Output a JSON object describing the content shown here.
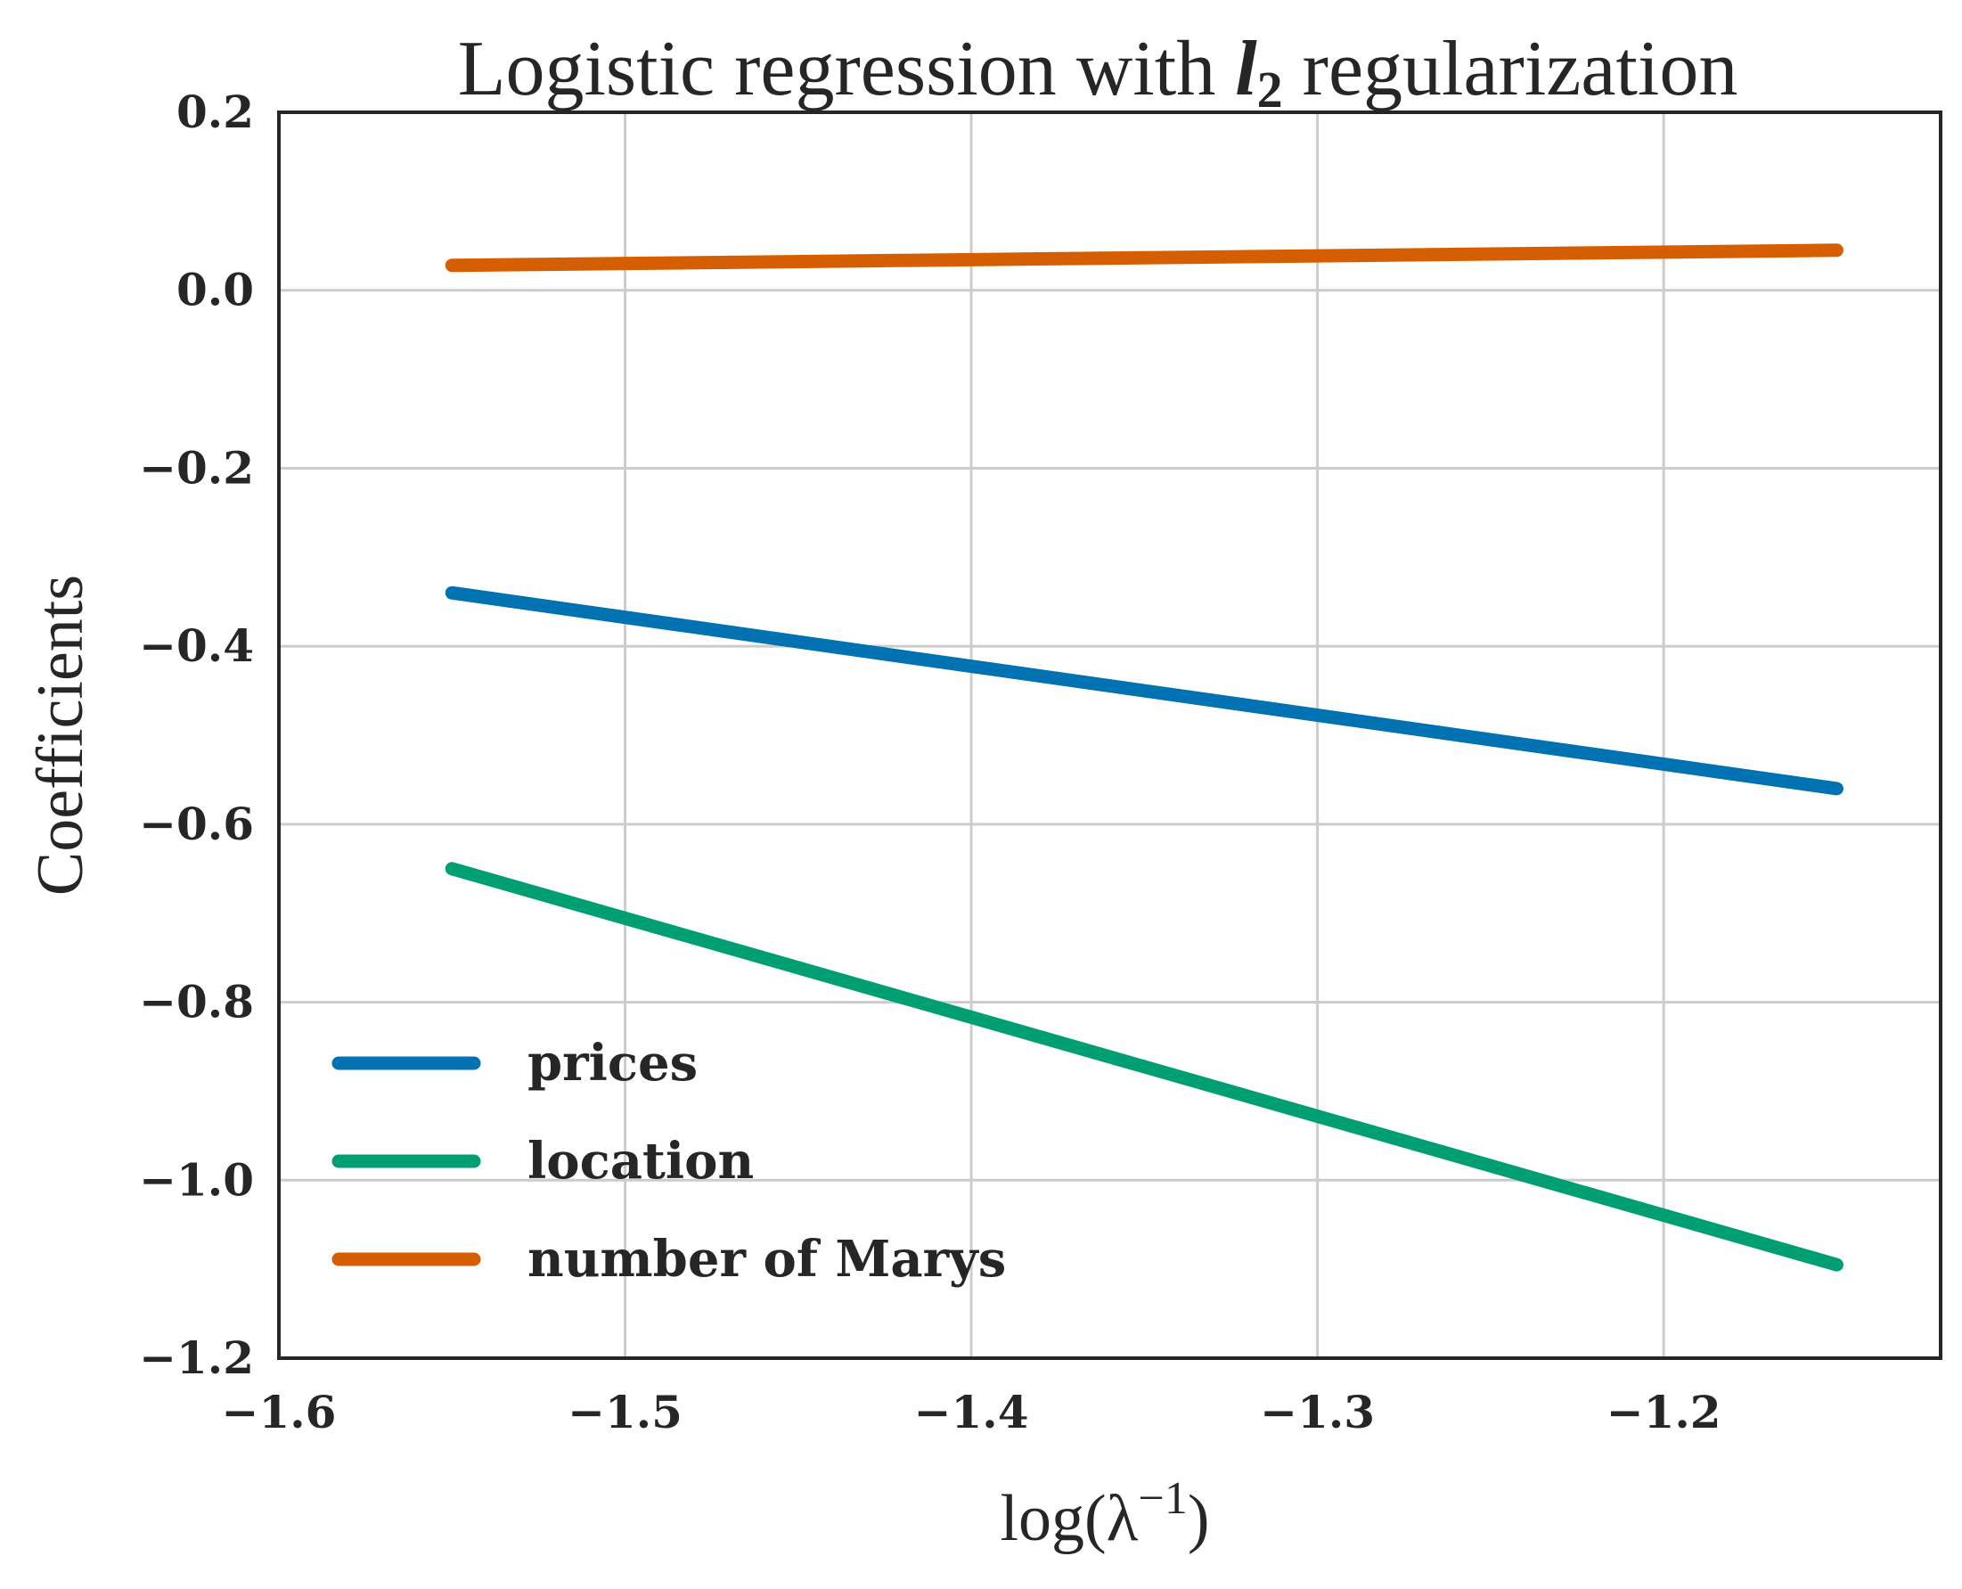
{
  "chart_data": {
    "type": "line",
    "title": "Logistic regression with ",
    "title_math": "l",
    "title_math_sub": "2",
    "title_suffix": " regularization",
    "xlabel": "log(λ",
    "xlabel_sup": "−1",
    "xlabel_close": ")",
    "ylabel": "Coefficients",
    "xlim": [
      -1.6,
      -1.12
    ],
    "ylim": [
      -1.2,
      0.2
    ],
    "xticks": [
      -1.6,
      -1.5,
      -1.4,
      -1.3,
      -1.2
    ],
    "xtick_labels": [
      "−1.6",
      "−1.5",
      "−1.4",
      "−1.3",
      "−1.2"
    ],
    "yticks": [
      0.2,
      0.0,
      -0.2,
      -0.4,
      -0.6,
      -0.8,
      -1.0,
      -1.2
    ],
    "ytick_labels": [
      "0.2",
      "0.0",
      "−0.2",
      "−0.4",
      "−0.6",
      "−0.8",
      "−1.0",
      "−1.2"
    ],
    "grid": true,
    "legend_position": "lower-left",
    "series": [
      {
        "name": "prices",
        "color": "#0072b2",
        "x": [
          -1.55,
          -1.15
        ],
        "y": [
          -0.34,
          -0.56
        ]
      },
      {
        "name": "location",
        "color": "#009e73",
        "x": [
          -1.55,
          -1.15
        ],
        "y": [
          -0.65,
          -1.095
        ]
      },
      {
        "name": "number of Marys",
        "color": "#d55e00",
        "x": [
          -1.55,
          -1.15
        ],
        "y": [
          0.028,
          0.045
        ]
      }
    ]
  }
}
